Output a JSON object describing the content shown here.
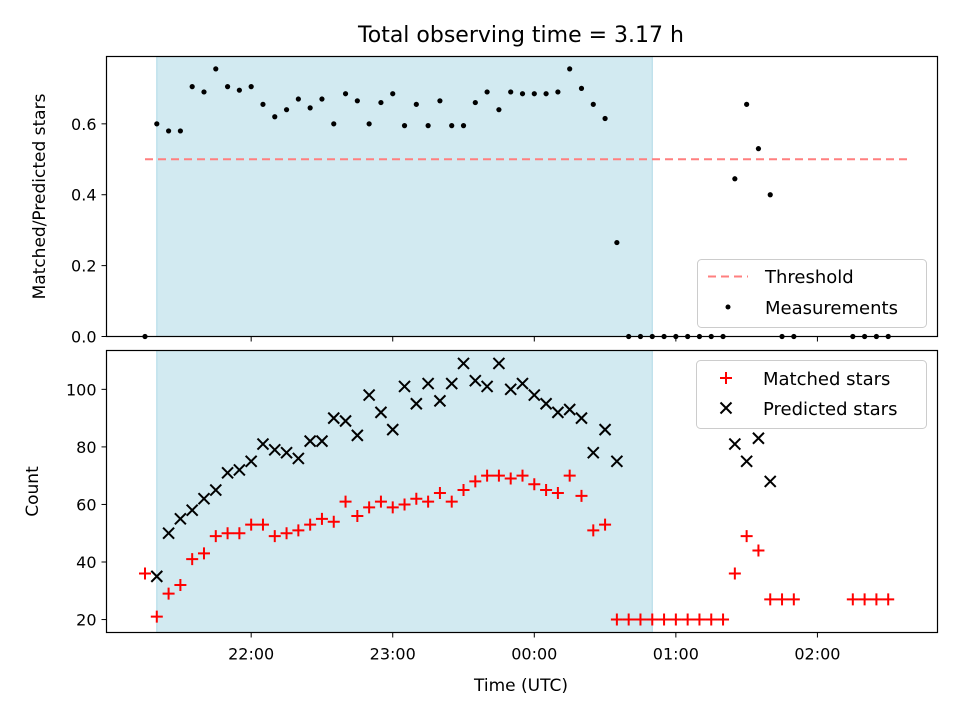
{
  "chart_data": {
    "type": "scatter",
    "title": "Total observing time = 3.17 h",
    "xlabel": "Time (UTC)",
    "x_ticks": [
      "22:00",
      "23:00",
      "00:00",
      "01:00",
      "02:00"
    ],
    "observing_window": [
      "21:20",
      "00:50"
    ],
    "colors": {
      "shade": "#add8e6",
      "threshold": "#ff7f7f",
      "matched": "#ff0000",
      "predicted": "#000000",
      "measure": "#000000"
    },
    "panels": [
      {
        "id": "ratio",
        "ylabel": "Matched/Predicted stars",
        "ylim": [
          0,
          0.79
        ],
        "y_ticks": [
          "0.0",
          "0.2",
          "0.4",
          "0.6"
        ],
        "threshold": {
          "name": "Threshold",
          "value": 0.5,
          "x_range": [
            "21:15",
            "02:40"
          ]
        },
        "legend": {
          "placement": "lower-right",
          "entries": [
            "Threshold",
            "Measurements"
          ]
        },
        "series": [
          {
            "name": "Measurements",
            "marker": "dot",
            "points": [
              [
                "21:15",
                0
              ],
              [
                "21:20",
                0.6
              ],
              [
                "21:25",
                0.58
              ],
              [
                "21:30",
                0.58
              ],
              [
                "21:35",
                0.705
              ],
              [
                "21:40",
                0.69
              ],
              [
                "21:45",
                0.755
              ],
              [
                "21:50",
                0.705
              ],
              [
                "21:55",
                0.695
              ],
              [
                "22:00",
                0.705
              ],
              [
                "22:05",
                0.655
              ],
              [
                "22:10",
                0.62
              ],
              [
                "22:15",
                0.64
              ],
              [
                "22:20",
                0.67
              ],
              [
                "22:25",
                0.645
              ],
              [
                "22:30",
                0.67
              ],
              [
                "22:35",
                0.6
              ],
              [
                "22:40",
                0.685
              ],
              [
                "22:45",
                0.665
              ],
              [
                "22:50",
                0.6
              ],
              [
                "22:55",
                0.66
              ],
              [
                "23:00",
                0.685
              ],
              [
                "23:05",
                0.595
              ],
              [
                "23:10",
                0.655
              ],
              [
                "23:15",
                0.595
              ],
              [
                "23:20",
                0.665
              ],
              [
                "23:25",
                0.595
              ],
              [
                "23:30",
                0.595
              ],
              [
                "23:35",
                0.66
              ],
              [
                "23:40",
                0.69
              ],
              [
                "23:45",
                0.64
              ],
              [
                "23:50",
                0.69
              ],
              [
                "23:55",
                0.685
              ],
              [
                "00:00",
                0.685
              ],
              [
                "00:05",
                0.685
              ],
              [
                "00:10",
                0.69
              ],
              [
                "00:15",
                0.755
              ],
              [
                "00:20",
                0.7
              ],
              [
                "00:25",
                0.655
              ],
              [
                "00:30",
                0.615
              ],
              [
                "00:35",
                0.265
              ],
              [
                "00:40",
                0
              ],
              [
                "00:45",
                0
              ],
              [
                "00:50",
                0
              ],
              [
                "00:55",
                0
              ],
              [
                "01:00",
                0
              ],
              [
                "01:05",
                0
              ],
              [
                "01:10",
                0
              ],
              [
                "01:15",
                0
              ],
              [
                "01:20",
                0
              ],
              [
                "01:25",
                0.445
              ],
              [
                "01:30",
                0.655
              ],
              [
                "01:35",
                0.53
              ],
              [
                "01:40",
                0.4
              ],
              [
                "01:45",
                0
              ],
              [
                "01:50",
                0
              ],
              [
                "02:15",
                0
              ],
              [
                "02:20",
                0
              ],
              [
                "02:25",
                0
              ],
              [
                "02:30",
                0
              ]
            ]
          }
        ]
      },
      {
        "id": "counts",
        "ylabel": "Count",
        "ylim": [
          15.5,
          113.5
        ],
        "y_ticks": [
          "20",
          "40",
          "60",
          "80",
          "100"
        ],
        "legend": {
          "placement": "upper-right",
          "entries": [
            "Matched stars",
            "Predicted stars"
          ]
        },
        "series": [
          {
            "name": "Matched stars",
            "marker": "plus",
            "points": [
              [
                "21:15",
                36
              ],
              [
                "21:20",
                21
              ],
              [
                "21:25",
                29
              ],
              [
                "21:30",
                32
              ],
              [
                "21:35",
                41
              ],
              [
                "21:40",
                43
              ],
              [
                "21:45",
                49
              ],
              [
                "21:50",
                50
              ],
              [
                "21:55",
                50
              ],
              [
                "22:00",
                53
              ],
              [
                "22:05",
                53
              ],
              [
                "22:10",
                49
              ],
              [
                "22:15",
                50
              ],
              [
                "22:20",
                51
              ],
              [
                "22:25",
                53
              ],
              [
                "22:30",
                55
              ],
              [
                "22:35",
                54
              ],
              [
                "22:40",
                61
              ],
              [
                "22:45",
                56
              ],
              [
                "22:50",
                59
              ],
              [
                "22:55",
                61
              ],
              [
                "23:00",
                59
              ],
              [
                "23:05",
                60
              ],
              [
                "23:10",
                62
              ],
              [
                "23:15",
                61
              ],
              [
                "23:20",
                64
              ],
              [
                "23:25",
                61
              ],
              [
                "23:30",
                65
              ],
              [
                "23:35",
                68
              ],
              [
                "23:40",
                70
              ],
              [
                "23:45",
                70
              ],
              [
                "23:50",
                69
              ],
              [
                "23:55",
                70
              ],
              [
                "00:00",
                67
              ],
              [
                "00:05",
                65
              ],
              [
                "00:10",
                64
              ],
              [
                "00:15",
                70
              ],
              [
                "00:20",
                63
              ],
              [
                "00:25",
                51
              ],
              [
                "00:30",
                53
              ],
              [
                "00:35",
                20
              ],
              [
                "00:40",
                20
              ],
              [
                "00:45",
                20
              ],
              [
                "00:50",
                20
              ],
              [
                "00:55",
                20
              ],
              [
                "01:00",
                20
              ],
              [
                "01:05",
                20
              ],
              [
                "01:10",
                20
              ],
              [
                "01:15",
                20
              ],
              [
                "01:20",
                20
              ],
              [
                "01:25",
                36
              ],
              [
                "01:30",
                49
              ],
              [
                "01:35",
                44
              ],
              [
                "01:40",
                27
              ],
              [
                "01:45",
                27
              ],
              [
                "01:50",
                27
              ],
              [
                "02:15",
                27
              ],
              [
                "02:20",
                27
              ],
              [
                "02:25",
                27
              ],
              [
                "02:30",
                27
              ]
            ]
          },
          {
            "name": "Predicted stars",
            "marker": "x",
            "points": [
              [
                "21:20",
                35
              ],
              [
                "21:25",
                50
              ],
              [
                "21:30",
                55
              ],
              [
                "21:35",
                58
              ],
              [
                "21:40",
                62
              ],
              [
                "21:45",
                65
              ],
              [
                "21:50",
                71
              ],
              [
                "21:55",
                72
              ],
              [
                "22:00",
                75
              ],
              [
                "22:05",
                81
              ],
              [
                "22:10",
                79
              ],
              [
                "22:15",
                78
              ],
              [
                "22:20",
                76
              ],
              [
                "22:25",
                82
              ],
              [
                "22:30",
                82
              ],
              [
                "22:35",
                90
              ],
              [
                "22:40",
                89
              ],
              [
                "22:45",
                84
              ],
              [
                "22:50",
                98
              ],
              [
                "22:55",
                92
              ],
              [
                "23:00",
                86
              ],
              [
                "23:05",
                101
              ],
              [
                "23:10",
                95
              ],
              [
                "23:15",
                102
              ],
              [
                "23:20",
                96
              ],
              [
                "23:25",
                102
              ],
              [
                "23:30",
                109
              ],
              [
                "23:35",
                103
              ],
              [
                "23:40",
                101
              ],
              [
                "23:45",
                109
              ],
              [
                "23:50",
                100
              ],
              [
                "23:55",
                102
              ],
              [
                "00:00",
                98
              ],
              [
                "00:05",
                95
              ],
              [
                "00:10",
                92
              ],
              [
                "00:15",
                93
              ],
              [
                "00:20",
                90
              ],
              [
                "00:25",
                78
              ],
              [
                "00:30",
                86
              ],
              [
                "00:35",
                75
              ],
              [
                "01:25",
                81
              ],
              [
                "01:30",
                75
              ],
              [
                "01:35",
                83
              ],
              [
                "01:40",
                68
              ]
            ]
          }
        ]
      }
    ]
  }
}
